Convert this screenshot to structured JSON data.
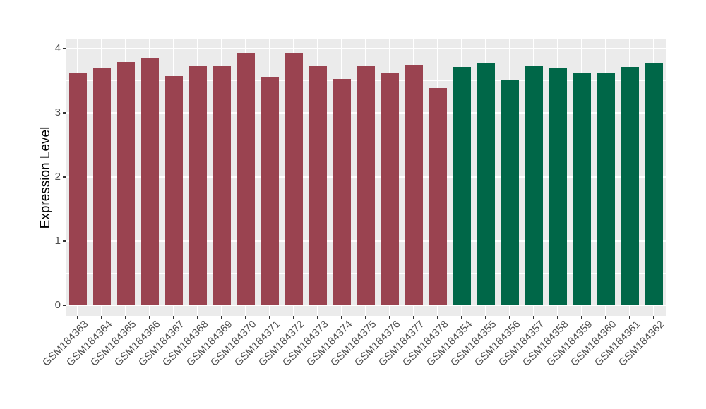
{
  "chart_data": {
    "type": "bar",
    "title": "",
    "xlabel": "",
    "ylabel": "Expression Level",
    "ylim": [
      -0.17,
      4.14
    ],
    "y_major_ticks": [
      0,
      1,
      2,
      3,
      4
    ],
    "y_minor_ticks": [
      0.5,
      1.5,
      2.5,
      3.5
    ],
    "grid": true,
    "legend_position": "none",
    "panel_background": "#EBEBEB",
    "gridline_color": "#FFFFFF",
    "axis_text_color": "#4D4D4D",
    "tick_mark_color": "#333333",
    "categories": [
      "GSM184363",
      "GSM184364",
      "GSM184365",
      "GSM184366",
      "GSM184367",
      "GSM184368",
      "GSM184369",
      "GSM184370",
      "GSM184371",
      "GSM184372",
      "GSM184373",
      "GSM184374",
      "GSM184375",
      "GSM184376",
      "GSM184377",
      "GSM184378",
      "GSM184354",
      "GSM184355",
      "GSM184356",
      "GSM184357",
      "GSM184358",
      "GSM184359",
      "GSM184360",
      "GSM184361",
      "GSM184362"
    ],
    "values": [
      3.63,
      3.7,
      3.79,
      3.86,
      3.57,
      3.74,
      3.73,
      3.93,
      3.56,
      3.93,
      3.73,
      3.53,
      3.74,
      3.63,
      3.75,
      3.39,
      3.71,
      3.77,
      3.51,
      3.72,
      3.69,
      3.63,
      3.62,
      3.71,
      3.78
    ],
    "bar_groups": [
      0,
      0,
      0,
      0,
      0,
      0,
      0,
      0,
      0,
      0,
      0,
      0,
      0,
      0,
      0,
      0,
      1,
      1,
      1,
      1,
      1,
      1,
      1,
      1,
      1
    ],
    "group_colors": [
      "#9A4350",
      "#006748"
    ],
    "group_names": [
      "maroon-group",
      "green-group"
    ]
  }
}
